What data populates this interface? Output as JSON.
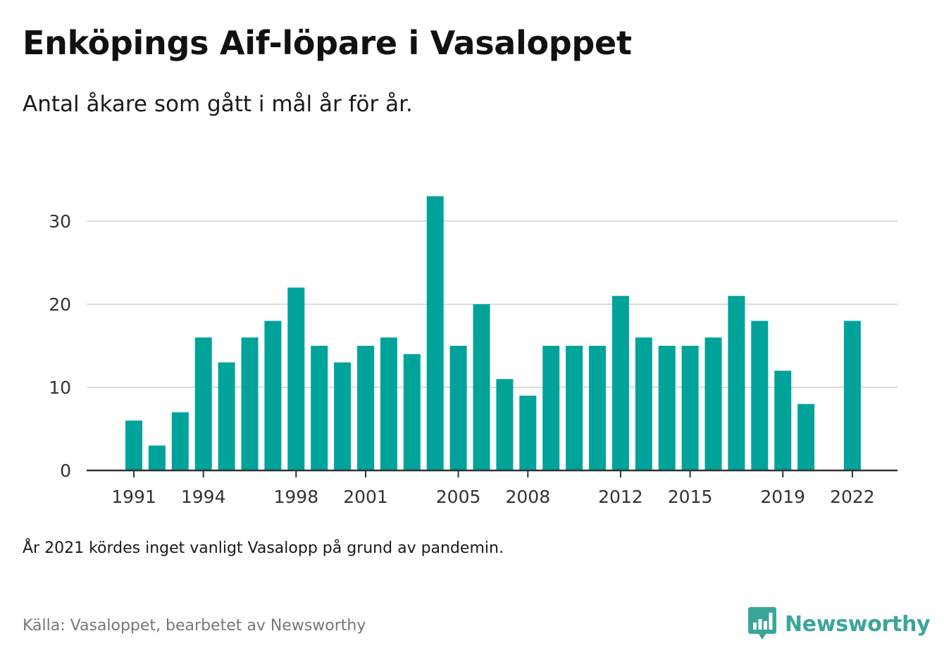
{
  "header": {
    "title": "Enköpings Aif-löpare i Vasaloppet",
    "subtitle": "Antal åkare som gått i mål år för år."
  },
  "footer": {
    "note": "År 2021 kördes inget vanligt Vasalopp på grund av pandemin.",
    "source": "Källa: Vasaloppet, bearbetet av Newsworthy",
    "brand": "Newsworthy"
  },
  "colors": {
    "bar": "#00a39a",
    "brand": "#3aa69b",
    "grid": "#dddddd",
    "axis": "#333333"
  },
  "chart_data": {
    "type": "bar",
    "title": "Enköpings Aif-löpare i Vasaloppet",
    "subtitle": "Antal åkare som gått i mål år för år.",
    "xlabel": "",
    "ylabel": "",
    "categories": [
      1991,
      1992,
      1993,
      1994,
      1995,
      1996,
      1997,
      1998,
      1999,
      2000,
      2001,
      2002,
      2003,
      2004,
      2005,
      2006,
      2007,
      2008,
      2009,
      2010,
      2011,
      2012,
      2013,
      2014,
      2015,
      2016,
      2017,
      2018,
      2019,
      2020,
      2021,
      2022
    ],
    "values": [
      6,
      3,
      7,
      16,
      13,
      16,
      18,
      22,
      15,
      13,
      15,
      16,
      14,
      33,
      15,
      20,
      11,
      9,
      15,
      15,
      15,
      21,
      16,
      15,
      15,
      16,
      21,
      18,
      12,
      8,
      null,
      18
    ],
    "x_tick_labels": [
      "1991",
      "1994",
      "1998",
      "2001",
      "2005",
      "2008",
      "2012",
      "2015",
      "2019",
      "2022"
    ],
    "y_ticks": [
      0,
      10,
      20,
      30
    ],
    "ylim": [
      0,
      33
    ],
    "grid": true,
    "legend": "none"
  }
}
